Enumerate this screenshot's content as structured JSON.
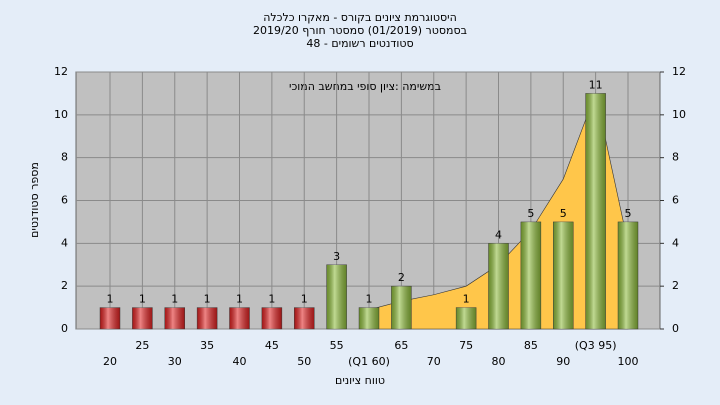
{
  "chart_data": {
    "type": "bar",
    "title": "היסטוגרמת ציונים בקורס - מאקרו כלכלה",
    "subtitle": "בסמסטר  (01/2019)  סמסטר חורף 2019/20",
    "subtitle2": "סטודנטים רשומים - 48",
    "annotation": "במשימה :ציון סופי במחשב המוכי",
    "y_label": "מספר סטודנטים",
    "x_label": "טווח ציונים",
    "categories": [
      "20",
      "25",
      "30",
      "35",
      "40",
      "45",
      "50",
      "55",
      "(Q1 60)",
      "65",
      "70",
      "75",
      "80",
      "85",
      "90",
      "(Q3 95)",
      "100"
    ],
    "values": [
      1,
      1,
      1,
      1,
      1,
      1,
      1,
      3,
      1,
      2,
      0,
      1,
      4,
      5,
      5,
      11,
      5
    ],
    "colors": [
      "#e02020",
      "#e02020",
      "#e02020",
      "#e02020",
      "#e02020",
      "#e02020",
      "#e02020",
      "#8dbb3a",
      "#8dbb3a",
      "#8dbb3a",
      "#8dbb3a",
      "#8dbb3a",
      "#8dbb3a",
      "#8dbb3a",
      "#8dbb3a",
      "#8dbb3a",
      "#8dbb3a"
    ],
    "trend": {
      "color": "#ffc64a",
      "values": [
        null,
        null,
        null,
        null,
        null,
        null,
        null,
        null,
        0.9,
        1.3,
        1.6,
        2,
        3,
        4.6,
        7,
        11,
        4
      ]
    },
    "ylim": [
      0,
      12
    ],
    "yticks": [
      0,
      2,
      4,
      6,
      8,
      10,
      12
    ],
    "y2lim": [
      0,
      12
    ],
    "y2ticks": [
      0,
      2,
      4,
      6,
      8,
      10,
      12
    ],
    "grid": true
  }
}
